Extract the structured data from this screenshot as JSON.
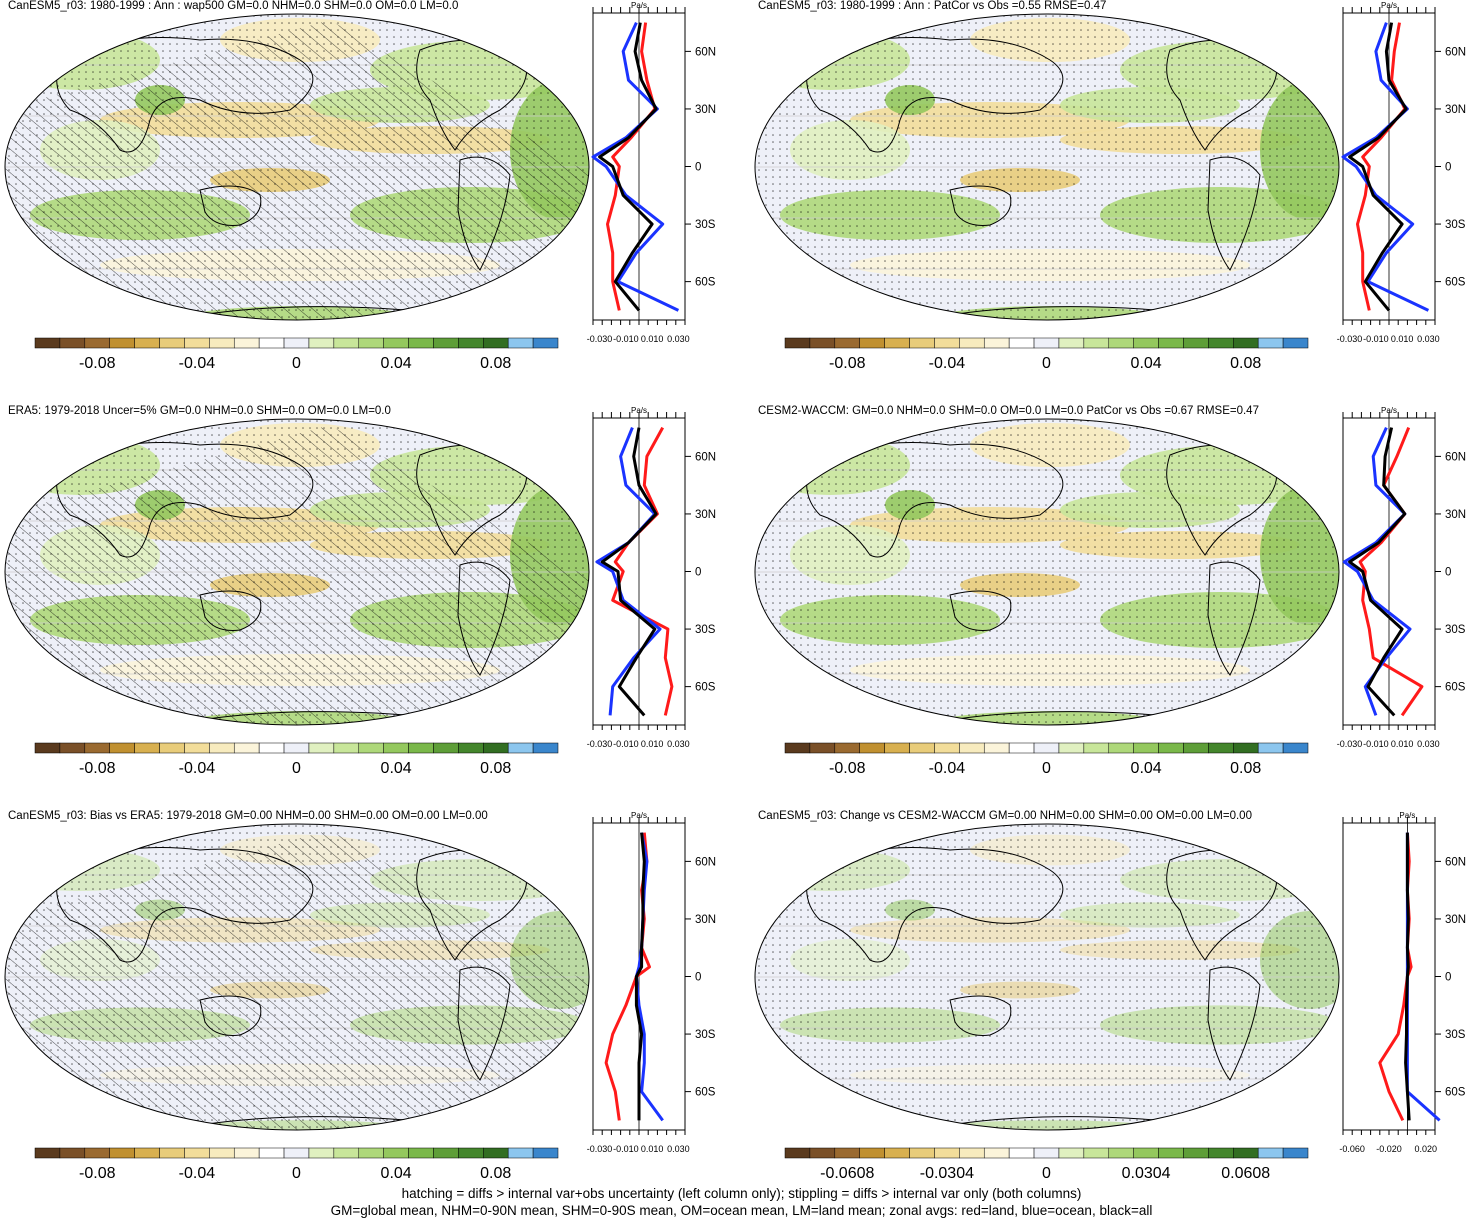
{
  "panels": [
    {
      "title": "CanESM5_r03: 1980-1999 : Ann : wap500 GM=0.0 NHM=0.0 SHM=0.0 OM=0.0 LM=0.0",
      "profile": {
        "units": "Pa/s",
        "lat_ticks": [
          "60N",
          "30N",
          "0",
          "30S",
          "60S"
        ],
        "x_ticks": [
          "-0.030",
          "-0.010",
          "0.010",
          "0.030"
        ]
      },
      "colorbar": {
        "labels": [
          "-0.08",
          "-0.04",
          "0",
          "0.04",
          "0.08"
        ]
      }
    },
    {
      "title": "CanESM5_r03: 1980-1999 : Ann : PatCor vs Obs =0.55 RMSE=0.47",
      "profile": {
        "units": "Pa/s",
        "lat_ticks": [
          "60N",
          "30N",
          "0",
          "30S",
          "60S"
        ],
        "x_ticks": [
          "-0.030",
          "-0.010",
          "0.010",
          "0.030"
        ]
      },
      "colorbar": {
        "labels": [
          "-0.08",
          "-0.04",
          "0",
          "0.04",
          "0.08"
        ]
      }
    },
    {
      "title": "ERA5: 1979-2018 Uncer=5% GM=0.0 NHM=0.0 SHM=0.0 OM=0.0 LM=0.0",
      "profile": {
        "units": "Pa/s",
        "lat_ticks": [
          "60N",
          "30N",
          "0",
          "30S",
          "60S"
        ],
        "x_ticks": [
          "-0.030",
          "-0.010",
          "0.010",
          "0.030"
        ]
      },
      "colorbar": {
        "labels": [
          "-0.08",
          "-0.04",
          "0",
          "0.04",
          "0.08"
        ]
      }
    },
    {
      "title": "CESM2-WACCM: GM=0.0 NHM=0.0 SHM=0.0 OM=0.0 LM=0.0 PatCor vs Obs =0.67 RMSE=0.47",
      "profile": {
        "units": "Pa/s",
        "lat_ticks": [
          "60N",
          "30N",
          "0",
          "30S",
          "60S"
        ],
        "x_ticks": [
          "-0.030",
          "-0.010",
          "0.010",
          "0.030"
        ]
      },
      "colorbar": {
        "labels": [
          "-0.08",
          "-0.04",
          "0",
          "0.04",
          "0.08"
        ]
      }
    },
    {
      "title": "CanESM5_r03: Bias vs ERA5: 1979-2018 GM=0.00 NHM=0.00 SHM=0.00 OM=0.00 LM=0.00",
      "profile": {
        "units": "Pa/s",
        "lat_ticks": [
          "60N",
          "30N",
          "0",
          "30S",
          "60S"
        ],
        "x_ticks": [
          "-0.030",
          "-0.010",
          "0.010",
          "0.030"
        ]
      },
      "colorbar": {
        "labels": [
          "-0.08",
          "-0.04",
          "0",
          "0.04",
          "0.08"
        ]
      }
    },
    {
      "title": "CanESM5_r03: Change vs CESM2-WACCM GM=0.00 NHM=0.00 SHM=0.00 OM=0.00 LM=0.00",
      "profile": {
        "units": "Pa/s",
        "lat_ticks": [
          "60N",
          "30N",
          "0",
          "30S",
          "60S"
        ],
        "x_ticks": [
          "-0.060",
          "-0.020",
          "0.020"
        ]
      },
      "colorbar": {
        "labels": [
          "-0.0608",
          "-0.0304",
          "0",
          "0.0304",
          "0.0608"
        ]
      }
    }
  ],
  "colorbar_colors": [
    "#5a3a1e",
    "#7a5028",
    "#9a6a30",
    "#c09030",
    "#d8b050",
    "#e8cc7a",
    "#f2dd9a",
    "#f7ebbe",
    "#fbf4da",
    "#ffffff",
    "#eef0f8",
    "#e0f0c0",
    "#c8e69a",
    "#aed87a",
    "#94c85e",
    "#7ab84a",
    "#5e9e38",
    "#44862c",
    "#326e22",
    "#8cc6ee",
    "#3a86cc"
  ],
  "footer": {
    "line1": "hatching = diffs > internal var+obs uncertainty (left column only); stippling = diffs > internal var only (both columns)",
    "line2": "GM=global mean, NHM=0-90N mean, SHM=0-90S mean, OM=ocean mean, LM=land mean; zonal avgs: red=land, blue=ocean, black=all"
  },
  "chart_data": [
    {
      "type": "heatmap",
      "title": "CanESM5_r03: 1980-1999 : Ann : wap500 GM=0.0 NHM=0.0 SHM=0.0 OM=0.0 LM=0.0",
      "units": "Pa/s",
      "colorbar_ticks": [
        -0.08,
        -0.04,
        0,
        0.04,
        0.08
      ],
      "zonal_profile": {
        "lat": [
          75,
          60,
          45,
          30,
          15,
          5,
          0,
          -15,
          -30,
          -45,
          -60,
          -75
        ],
        "series": [
          {
            "name": "land",
            "values": [
              0.005,
              0.002,
              0.006,
              0.012,
              -0.006,
              -0.02,
              -0.015,
              -0.018,
              -0.024,
              -0.02,
              -0.02,
              -0.015
            ]
          },
          {
            "name": "ocean",
            "values": [
              -0.002,
              -0.012,
              -0.008,
              0.014,
              -0.01,
              -0.035,
              -0.025,
              -0.01,
              0.018,
              -0.002,
              -0.016,
              0.03
            ]
          },
          {
            "name": "all",
            "values": [
              0.001,
              -0.003,
              0.002,
              0.013,
              -0.008,
              -0.03,
              -0.02,
              -0.012,
              0.01,
              -0.005,
              -0.018,
              0.0
            ]
          }
        ]
      }
    },
    {
      "type": "heatmap",
      "title": "CanESM5_r03: 1980-1999 : Ann : PatCor vs Obs =0.55 RMSE=0.47",
      "units": "Pa/s",
      "colorbar_ticks": [
        -0.08,
        -0.04,
        0,
        0.04,
        0.08
      ],
      "zonal_profile": {
        "lat": [
          75,
          60,
          45,
          30,
          15,
          5,
          0,
          -15,
          -30,
          -45,
          -60,
          -75
        ],
        "series": [
          {
            "name": "land",
            "values": [
              0.008,
              0.004,
              0.002,
              0.012,
              -0.006,
              -0.02,
              -0.015,
              -0.018,
              -0.024,
              -0.02,
              -0.02,
              -0.015
            ]
          },
          {
            "name": "ocean",
            "values": [
              -0.002,
              -0.01,
              -0.006,
              0.014,
              -0.01,
              -0.035,
              -0.025,
              -0.01,
              0.018,
              -0.002,
              -0.016,
              0.03
            ]
          },
          {
            "name": "all",
            "values": [
              0.002,
              -0.002,
              0.0,
              0.013,
              -0.008,
              -0.03,
              -0.02,
              -0.012,
              0.01,
              -0.005,
              -0.018,
              0.0
            ]
          }
        ]
      }
    },
    {
      "type": "heatmap",
      "title": "ERA5: 1979-2018 Uncer=5% GM=0.0 NHM=0.0 SHM=0.0 OM=0.0 LM=0.0",
      "units": "Pa/s",
      "colorbar_ticks": [
        -0.08,
        -0.04,
        0,
        0.04,
        0.08
      ],
      "zonal_profile": {
        "lat": [
          75,
          60,
          45,
          30,
          15,
          5,
          0,
          -15,
          -30,
          -45,
          -60,
          -75
        ],
        "series": [
          {
            "name": "land",
            "values": [
              0.018,
              0.006,
              0.004,
              0.014,
              -0.008,
              -0.018,
              -0.012,
              -0.02,
              0.022,
              0.02,
              0.025,
              0.02
            ]
          },
          {
            "name": "ocean",
            "values": [
              -0.005,
              -0.014,
              -0.01,
              0.012,
              -0.008,
              -0.032,
              -0.02,
              -0.012,
              0.016,
              -0.004,
              -0.02,
              -0.022
            ]
          },
          {
            "name": "all",
            "values": [
              0.0,
              -0.004,
              0.0,
              0.013,
              -0.008,
              -0.028,
              -0.016,
              -0.014,
              0.012,
              -0.002,
              -0.015,
              0.004
            ]
          }
        ]
      }
    },
    {
      "type": "heatmap",
      "title": "CESM2-WACCM: GM=0.0 NHM=0.0 SHM=0.0 OM=0.0 LM=0.0 PatCor vs Obs =0.67 RMSE=0.47",
      "units": "Pa/s",
      "colorbar_ticks": [
        -0.08,
        -0.04,
        0,
        0.04,
        0.08
      ],
      "zonal_profile": {
        "lat": [
          75,
          60,
          45,
          30,
          15,
          5,
          0,
          -15,
          -30,
          -45,
          -60,
          -75
        ],
        "series": [
          {
            "name": "land",
            "values": [
              0.015,
              0.006,
              -0.004,
              0.012,
              -0.006,
              -0.022,
              -0.018,
              -0.02,
              -0.015,
              -0.012,
              0.025,
              0.01
            ]
          },
          {
            "name": "ocean",
            "values": [
              -0.002,
              -0.012,
              -0.01,
              0.012,
              -0.01,
              -0.034,
              -0.024,
              -0.012,
              0.016,
              -0.002,
              -0.018,
              -0.01
            ]
          },
          {
            "name": "all",
            "values": [
              0.002,
              -0.003,
              -0.004,
              0.012,
              -0.008,
              -0.03,
              -0.02,
              -0.014,
              0.01,
              -0.004,
              -0.016,
              0.004
            ]
          }
        ]
      }
    },
    {
      "type": "heatmap",
      "title": "CanESM5_r03: Bias vs ERA5: 1979-2018 GM=0.00 NHM=0.00 SHM=0.00 OM=0.00 LM=0.00",
      "units": "Pa/s",
      "colorbar_ticks": [
        -0.08,
        -0.04,
        0,
        0.04,
        0.08
      ],
      "zonal_profile": {
        "lat": [
          75,
          60,
          45,
          30,
          15,
          5,
          0,
          -15,
          -30,
          -45,
          -60,
          -75
        ],
        "series": [
          {
            "name": "land",
            "values": [
              0.004,
              0.006,
              0.002,
              0.004,
              0.002,
              0.008,
              -0.002,
              -0.01,
              -0.02,
              -0.025,
              -0.018,
              -0.015
            ]
          },
          {
            "name": "ocean",
            "values": [
              0.002,
              0.006,
              0.004,
              0.003,
              0.002,
              0.0,
              -0.002,
              0.0,
              0.004,
              0.004,
              0.002,
              0.018
            ]
          },
          {
            "name": "all",
            "values": [
              0.002,
              0.004,
              0.003,
              0.003,
              0.002,
              0.002,
              -0.002,
              -0.002,
              0.002,
              0.0,
              0.0,
              0.0
            ]
          }
        ]
      }
    },
    {
      "type": "heatmap",
      "title": "CanESM5_r03: Change vs CESM2-WACCM GM=0.00 NHM=0.00 SHM=0.00 OM=0.00 LM=0.00",
      "units": "Pa/s",
      "colorbar_ticks": [
        -0.0608,
        -0.0304,
        0,
        0.0304,
        0.0608
      ],
      "zonal_profile": {
        "lat": [
          75,
          60,
          45,
          30,
          15,
          5,
          0,
          -15,
          -30,
          -45,
          -60,
          -75
        ],
        "series": [
          {
            "name": "land",
            "values": [
              0.0,
              0.002,
              0.0,
              0.002,
              0.0,
              0.004,
              0.0,
              -0.004,
              -0.01,
              -0.03,
              -0.02,
              -0.005
            ]
          },
          {
            "name": "ocean",
            "values": [
              0.0,
              0.0,
              0.0,
              0.0,
              0.0,
              0.0,
              0.0,
              0.0,
              0.0,
              0.0,
              0.0,
              0.035
            ]
          },
          {
            "name": "all",
            "values": [
              0.0,
              0.0,
              0.0,
              0.001,
              0.0,
              0.001,
              0.0,
              -0.001,
              -0.001,
              -0.002,
              0.0,
              0.002
            ]
          }
        ]
      }
    }
  ]
}
